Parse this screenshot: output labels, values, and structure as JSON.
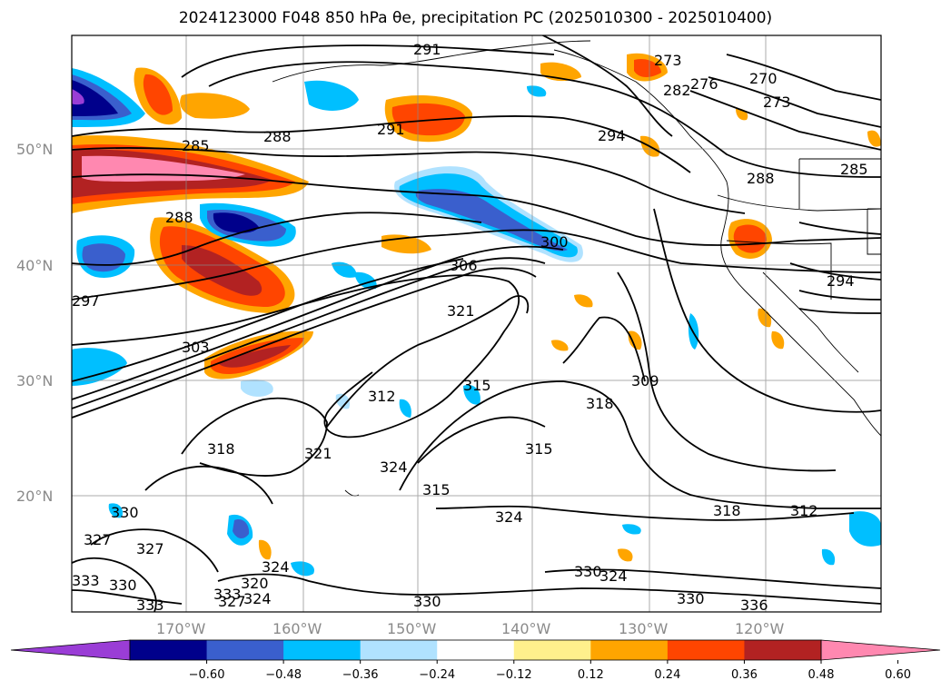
{
  "title": "2024123000 F048 850 hPa θe, precipitation PC (2025010300 - 2025010400)",
  "map": {
    "lat_labels": [
      "50°N",
      "40°N",
      "30°N",
      "20°N"
    ],
    "lon_labels": [
      "170°W",
      "160°W",
      "150°W",
      "140°W",
      "130°W",
      "120°W"
    ]
  },
  "contour_labels": [
    "291",
    "273",
    "270",
    "276",
    "282",
    "273",
    "291",
    "288",
    "294",
    "285",
    "285",
    "288",
    "288",
    "300",
    "306",
    "294",
    "297",
    "321",
    "303",
    "312",
    "315",
    "318",
    "309",
    "318",
    "315",
    "321",
    "324",
    "315",
    "324",
    "318",
    "312",
    "330",
    "327",
    "327",
    "330",
    "333",
    "333",
    "320",
    "324",
    "327",
    "324",
    "330",
    "324",
    "330",
    "333",
    "336",
    "330"
  ],
  "colorbar": {
    "ticks": [
      "−0.60",
      "−0.48",
      "−0.36",
      "−0.24",
      "−0.12",
      "0.12",
      "0.24",
      "0.36",
      "0.48",
      "0.60"
    ],
    "colors": [
      "#9a3dd6",
      "#00008b",
      "#3a5fcd",
      "#00bfff",
      "#b0e2ff",
      "#ffffff",
      "#fff08c",
      "#ffa500",
      "#ff4500",
      "#b22222",
      "#ff88b0"
    ]
  }
}
